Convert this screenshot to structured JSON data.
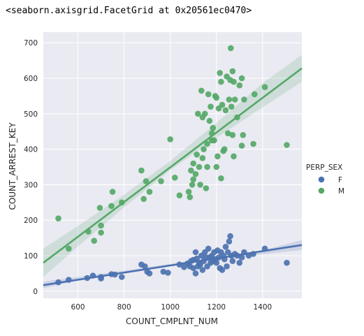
{
  "output_text": "<seaborn.axisgrid.FacetGrid at 0x20561ec0470>",
  "chart_data": {
    "type": "scatter",
    "xlabel": "COUNT_CMPLNT_NUM",
    "ylabel": "COUNT_ARREST_KEY",
    "xlim": [
      450,
      1570
    ],
    "ylim": [
      -20,
      730
    ],
    "x_ticks": [
      600,
      800,
      1000,
      1200,
      1400
    ],
    "y_ticks": [
      0,
      100,
      200,
      300,
      400,
      500,
      600,
      700
    ],
    "grid": true,
    "background": "#eaeaf2",
    "legend": {
      "title": "PERP_SEX",
      "placement": "right",
      "entries": [
        {
          "label": "F",
          "color": "#4c72b0"
        },
        {
          "label": "M",
          "color": "#55a868"
        }
      ]
    },
    "series": [
      {
        "name": "F",
        "color": "#4c72b0",
        "fit_line": {
          "x": [
            450,
            1570
          ],
          "y": [
            17,
            130
          ]
        },
        "ci_band": {
          "x": [
            450,
            600,
            800,
            1000,
            1200,
            1400,
            1570
          ],
          "lower": [
            8,
            31,
            53,
            72,
            89,
            104,
            116
          ],
          "upper": [
            27,
            40,
            58,
            77,
            95,
            115,
            144
          ]
        },
        "points": [
          {
            "x": 515,
            "y": 25
          },
          {
            "x": 560,
            "y": 32
          },
          {
            "x": 640,
            "y": 37
          },
          {
            "x": 665,
            "y": 44
          },
          {
            "x": 700,
            "y": 40
          },
          {
            "x": 700,
            "y": 36
          },
          {
            "x": 745,
            "y": 48
          },
          {
            "x": 760,
            "y": 47
          },
          {
            "x": 790,
            "y": 40
          },
          {
            "x": 875,
            "y": 75
          },
          {
            "x": 890,
            "y": 70
          },
          {
            "x": 900,
            "y": 55
          },
          {
            "x": 910,
            "y": 50
          },
          {
            "x": 970,
            "y": 55
          },
          {
            "x": 990,
            "y": 52
          },
          {
            "x": 1040,
            "y": 75
          },
          {
            "x": 1060,
            "y": 68
          },
          {
            "x": 1075,
            "y": 78
          },
          {
            "x": 1085,
            "y": 70
          },
          {
            "x": 1090,
            "y": 85
          },
          {
            "x": 1100,
            "y": 88
          },
          {
            "x": 1100,
            "y": 65
          },
          {
            "x": 1110,
            "y": 110
          },
          {
            "x": 1110,
            "y": 50
          },
          {
            "x": 1115,
            "y": 92
          },
          {
            "x": 1120,
            "y": 70
          },
          {
            "x": 1125,
            "y": 80
          },
          {
            "x": 1130,
            "y": 75
          },
          {
            "x": 1135,
            "y": 100
          },
          {
            "x": 1140,
            "y": 60
          },
          {
            "x": 1145,
            "y": 85
          },
          {
            "x": 1150,
            "y": 110
          },
          {
            "x": 1155,
            "y": 95
          },
          {
            "x": 1160,
            "y": 70
          },
          {
            "x": 1165,
            "y": 120
          },
          {
            "x": 1170,
            "y": 95
          },
          {
            "x": 1175,
            "y": 80
          },
          {
            "x": 1180,
            "y": 100
          },
          {
            "x": 1185,
            "y": 85
          },
          {
            "x": 1190,
            "y": 110
          },
          {
            "x": 1195,
            "y": 90
          },
          {
            "x": 1200,
            "y": 80
          },
          {
            "x": 1205,
            "y": 115
          },
          {
            "x": 1210,
            "y": 95
          },
          {
            "x": 1215,
            "y": 65
          },
          {
            "x": 1220,
            "y": 110
          },
          {
            "x": 1225,
            "y": 60
          },
          {
            "x": 1230,
            "y": 100
          },
          {
            "x": 1235,
            "y": 90
          },
          {
            "x": 1240,
            "y": 125
          },
          {
            "x": 1245,
            "y": 70
          },
          {
            "x": 1250,
            "y": 110
          },
          {
            "x": 1255,
            "y": 140
          },
          {
            "x": 1260,
            "y": 155
          },
          {
            "x": 1265,
            "y": 100
          },
          {
            "x": 1270,
            "y": 85
          },
          {
            "x": 1280,
            "y": 105
          },
          {
            "x": 1290,
            "y": 100
          },
          {
            "x": 1300,
            "y": 80
          },
          {
            "x": 1310,
            "y": 95
          },
          {
            "x": 1320,
            "y": 110
          },
          {
            "x": 1340,
            "y": 100
          },
          {
            "x": 1360,
            "y": 105
          },
          {
            "x": 1410,
            "y": 120
          },
          {
            "x": 1505,
            "y": 80
          }
        ]
      },
      {
        "name": "M",
        "color": "#55a868",
        "fit_line": {
          "x": [
            450,
            1570
          ],
          "y": [
            80,
            628
          ]
        },
        "ci_band": {
          "x": [
            450,
            600,
            800,
            1000,
            1200,
            1400,
            1570
          ],
          "lower": [
            40,
            126,
            236,
            341,
            432,
            518,
            590
          ],
          "upper": [
            120,
            184,
            272,
            367,
            474,
            586,
            666
          ]
        },
        "points": [
          {
            "x": 515,
            "y": 205
          },
          {
            "x": 560,
            "y": 120
          },
          {
            "x": 645,
            "y": 168
          },
          {
            "x": 670,
            "y": 142
          },
          {
            "x": 695,
            "y": 235
          },
          {
            "x": 700,
            "y": 185
          },
          {
            "x": 700,
            "y": 165
          },
          {
            "x": 745,
            "y": 240
          },
          {
            "x": 750,
            "y": 280
          },
          {
            "x": 790,
            "y": 250
          },
          {
            "x": 875,
            "y": 340
          },
          {
            "x": 885,
            "y": 260
          },
          {
            "x": 895,
            "y": 310
          },
          {
            "x": 910,
            "y": 280
          },
          {
            "x": 960,
            "y": 310
          },
          {
            "x": 1000,
            "y": 428
          },
          {
            "x": 1020,
            "y": 320
          },
          {
            "x": 1040,
            "y": 270
          },
          {
            "x": 1080,
            "y": 280
          },
          {
            "x": 1085,
            "y": 265
          },
          {
            "x": 1090,
            "y": 340
          },
          {
            "x": 1095,
            "y": 300
          },
          {
            "x": 1100,
            "y": 315
          },
          {
            "x": 1100,
            "y": 360
          },
          {
            "x": 1110,
            "y": 330
          },
          {
            "x": 1115,
            "y": 385
          },
          {
            "x": 1120,
            "y": 500
          },
          {
            "x": 1125,
            "y": 350
          },
          {
            "x": 1130,
            "y": 300
          },
          {
            "x": 1135,
            "y": 565
          },
          {
            "x": 1140,
            "y": 375
          },
          {
            "x": 1140,
            "y": 490
          },
          {
            "x": 1145,
            "y": 400
          },
          {
            "x": 1150,
            "y": 500
          },
          {
            "x": 1155,
            "y": 290
          },
          {
            "x": 1160,
            "y": 350
          },
          {
            "x": 1160,
            "y": 415
          },
          {
            "x": 1165,
            "y": 555
          },
          {
            "x": 1170,
            "y": 480
          },
          {
            "x": 1175,
            "y": 520
          },
          {
            "x": 1180,
            "y": 445
          },
          {
            "x": 1180,
            "y": 425
          },
          {
            "x": 1185,
            "y": 460
          },
          {
            "x": 1190,
            "y": 425
          },
          {
            "x": 1195,
            "y": 550
          },
          {
            "x": 1200,
            "y": 545
          },
          {
            "x": 1200,
            "y": 350
          },
          {
            "x": 1205,
            "y": 380
          },
          {
            "x": 1210,
            "y": 515
          },
          {
            "x": 1215,
            "y": 615
          },
          {
            "x": 1220,
            "y": 318
          },
          {
            "x": 1220,
            "y": 590
          },
          {
            "x": 1225,
            "y": 525
          },
          {
            "x": 1230,
            "y": 395
          },
          {
            "x": 1235,
            "y": 400
          },
          {
            "x": 1240,
            "y": 510
          },
          {
            "x": 1245,
            "y": 605
          },
          {
            "x": 1250,
            "y": 445
          },
          {
            "x": 1255,
            "y": 540
          },
          {
            "x": 1260,
            "y": 595
          },
          {
            "x": 1262,
            "y": 685
          },
          {
            "x": 1265,
            "y": 520
          },
          {
            "x": 1270,
            "y": 620
          },
          {
            "x": 1270,
            "y": 440
          },
          {
            "x": 1275,
            "y": 590
          },
          {
            "x": 1275,
            "y": 380
          },
          {
            "x": 1280,
            "y": 540
          },
          {
            "x": 1290,
            "y": 490
          },
          {
            "x": 1300,
            "y": 580
          },
          {
            "x": 1310,
            "y": 600
          },
          {
            "x": 1310,
            "y": 410
          },
          {
            "x": 1315,
            "y": 440
          },
          {
            "x": 1320,
            "y": 540
          },
          {
            "x": 1360,
            "y": 415
          },
          {
            "x": 1365,
            "y": 555
          },
          {
            "x": 1410,
            "y": 575
          },
          {
            "x": 1505,
            "y": 412
          }
        ]
      }
    ]
  }
}
